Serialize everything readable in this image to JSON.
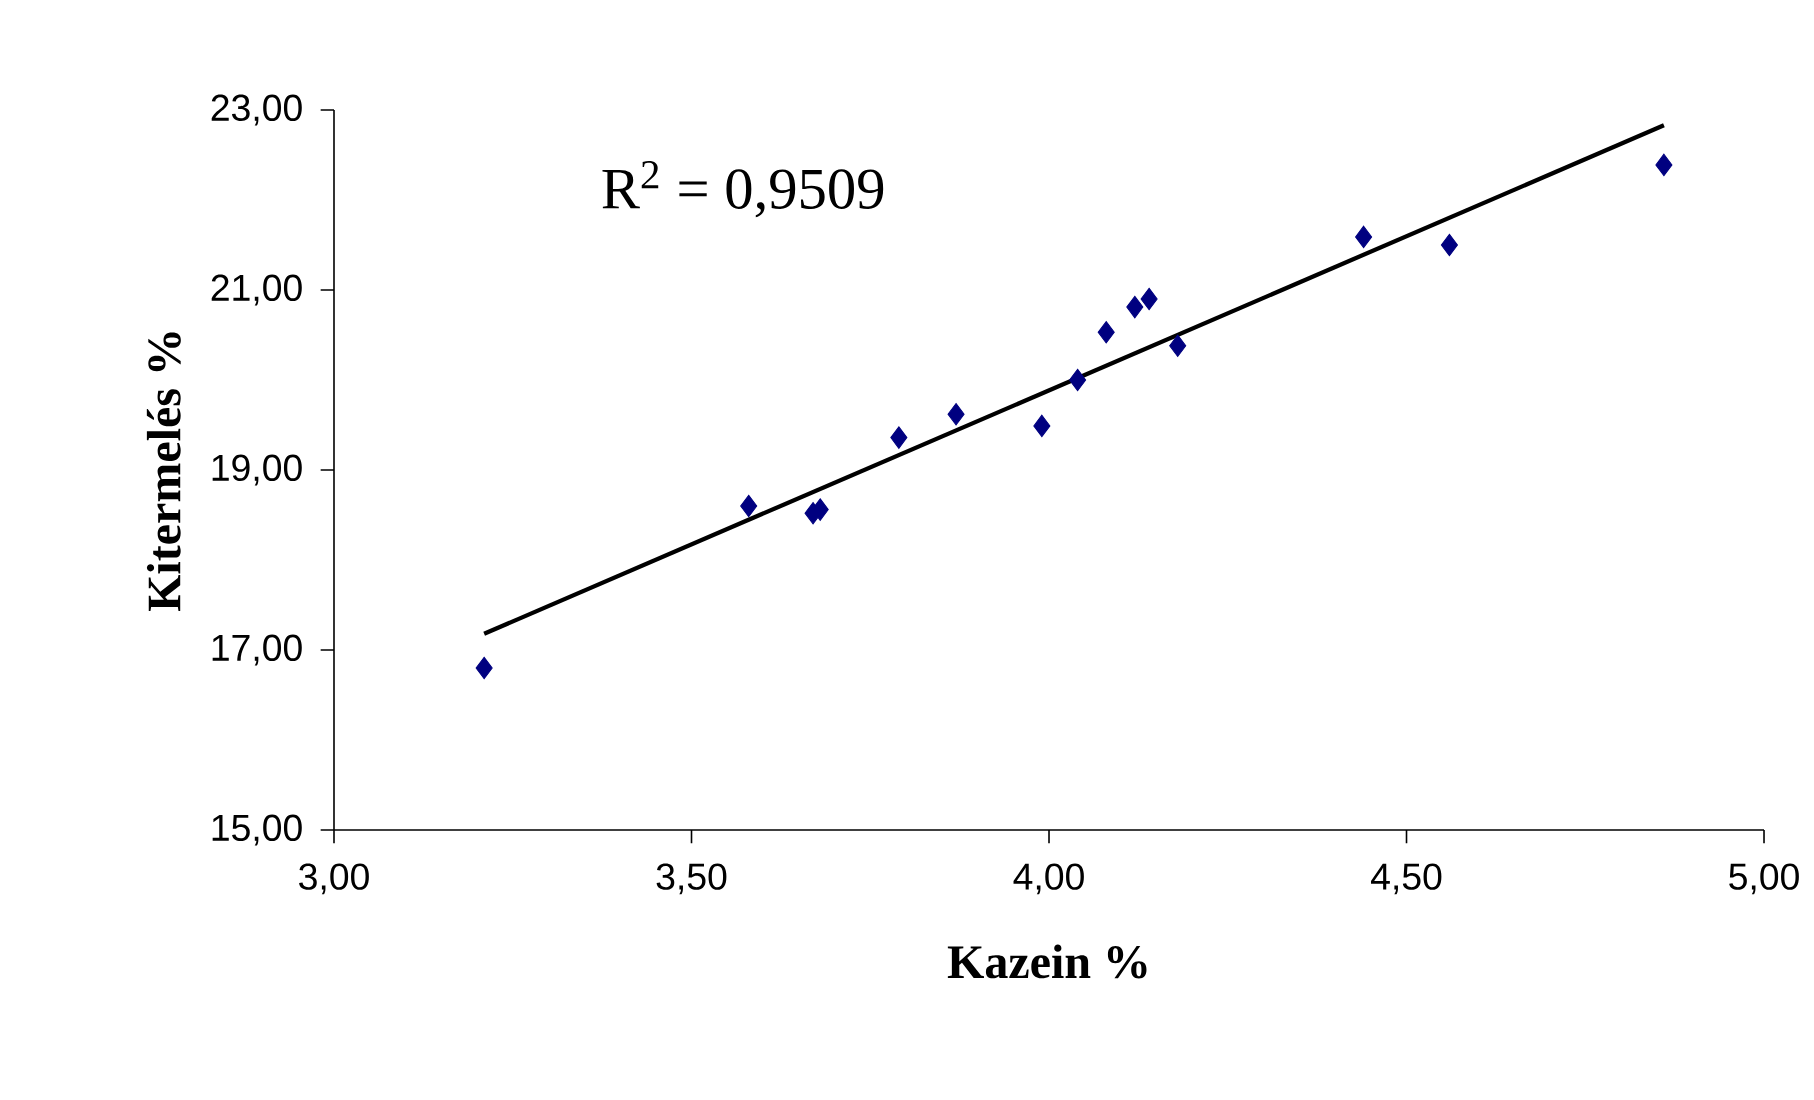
{
  "chart_data": {
    "type": "scatter",
    "xlabel": "Kazein %",
    "ylabel": "Kitermelés %",
    "annotations": [
      "R$^{2}$ = 0,9509"
    ],
    "xlim": [
      3,
      5
    ],
    "ylim": [
      15,
      23
    ],
    "xticks": [
      {
        "value": 3,
        "label": "3,00"
      },
      {
        "value": 3.5,
        "label": "3,50"
      },
      {
        "value": 4,
        "label": "4,00"
      },
      {
        "value": 4.5,
        "label": "4,50"
      },
      {
        "value": 5,
        "label": "5,00"
      }
    ],
    "yticks": [
      {
        "value": 15,
        "label": "15,00"
      },
      {
        "value": 17,
        "label": "17,00"
      },
      {
        "value": 19,
        "label": "19,00"
      },
      {
        "value": 21,
        "label": "21,00"
      },
      {
        "value": 23,
        "label": "23,00"
      }
    ],
    "grid": false,
    "series": [
      {
        "color": "#000080",
        "marker": "diamond",
        "x": [
          3.21,
          3.58,
          3.67,
          3.68,
          3.79,
          3.87,
          3.99,
          4.04,
          4.08,
          4.12,
          4.14,
          4.18,
          4.44,
          4.56,
          4.86
        ],
        "values": [
          16.8,
          18.6,
          18.52,
          18.56,
          19.36,
          19.62,
          19.49,
          20.0,
          20.53,
          20.81,
          20.9,
          20.38,
          21.59,
          21.5,
          22.39
        ]
      },
      {
        "type": "line",
        "color": "#000000",
        "marker": "none",
        "line_style": "solid",
        "x": [
          3.21,
          4.86
        ],
        "values": [
          17.18,
          22.83
        ]
      }
    ]
  }
}
